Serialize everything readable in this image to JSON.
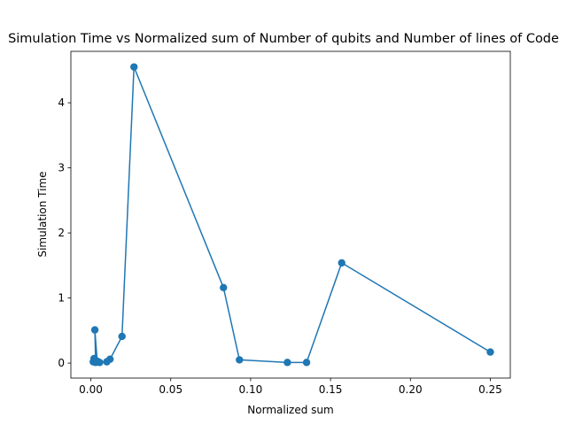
{
  "chart_data": {
    "type": "line",
    "title": "Simulation Time vs Normalized sum of Number of qubits and Number of lines of Code",
    "xlabel": "Normalized sum",
    "ylabel": "Simulation Time",
    "xlim": [
      -0.0125,
      0.2625
    ],
    "ylim": [
      -0.23,
      4.79
    ],
    "xticks": [
      0.0,
      0.05,
      0.1,
      0.15,
      0.2,
      0.25
    ],
    "xtick_labels": [
      "0.00",
      "0.05",
      "0.10",
      "0.15",
      "0.20",
      "0.25"
    ],
    "yticks": [
      0,
      1,
      2,
      3,
      4
    ],
    "ytick_labels": [
      "0",
      "1",
      "2",
      "3",
      "4"
    ],
    "grid": false,
    "legend": "none",
    "color": "#1f77b4",
    "marker": "circle",
    "series": [
      {
        "x": [
          0.002,
          0.0015,
          0.003,
          0.0025,
          0.004,
          0.0055,
          0.01,
          0.012,
          0.0195,
          0.027,
          0.083,
          0.093,
          0.123,
          0.135,
          0.157,
          0.25
        ],
        "y": [
          0.07,
          0.02,
          0.01,
          0.51,
          0.03,
          0.01,
          0.02,
          0.06,
          0.41,
          4.55,
          1.16,
          0.05,
          0.01,
          0.01,
          1.54,
          0.17
        ]
      }
    ]
  }
}
